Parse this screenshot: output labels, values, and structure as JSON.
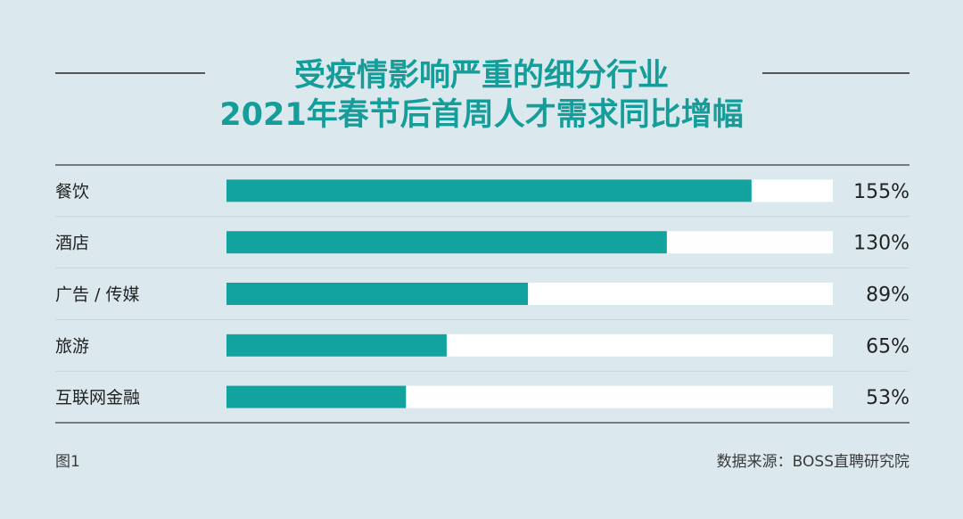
{
  "chart_data": {
    "type": "bar",
    "orientation": "horizontal",
    "title_lines": [
      "受疫情影响严重的细分行业",
      "2021年春节后首周人才需求同比增幅"
    ],
    "categories": [
      "餐饮",
      "酒店",
      "广告 / 传媒",
      "旅游",
      "互联网金融"
    ],
    "values": [
      155,
      130,
      89,
      65,
      53
    ],
    "value_labels": [
      "155%",
      "130%",
      "89%",
      "65%",
      "53%"
    ],
    "xlim": [
      0,
      179
    ],
    "grid": false,
    "bar_color": "#12a39e",
    "track_color": "#ffffff"
  },
  "footer": {
    "figure_label": "图1",
    "source": "数据来源：BOSS直聘研究院"
  },
  "colors": {
    "background": "#dbe9ef",
    "title": "#159e99",
    "divider": "#555555"
  }
}
